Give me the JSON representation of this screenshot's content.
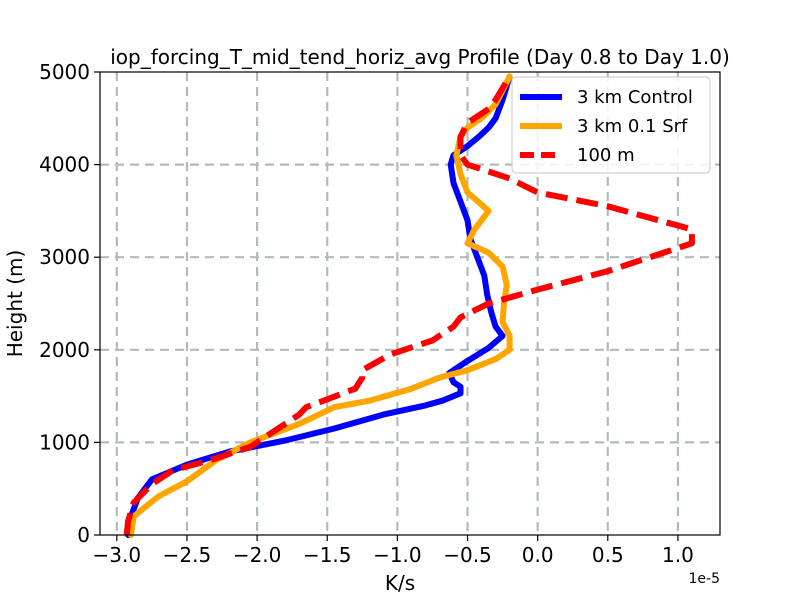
{
  "chart_data": {
    "type": "line",
    "title": "iop_forcing_T_mid_tend_horiz_avg Profile (Day 0.8 to Day 1.0)",
    "xlabel": "K/s",
    "ylabel": "Height (m)",
    "x_offset_label": "1e-5",
    "x_scale": 1e-05,
    "xlim": [
      -3.12,
      1.3
    ],
    "ylim": [
      0,
      5000
    ],
    "xticks": [
      -3.0,
      -2.5,
      -2.0,
      -1.5,
      -1.0,
      -0.5,
      0.0,
      0.5,
      1.0
    ],
    "xtick_labels": [
      "−3.0",
      "−2.5",
      "−2.0",
      "−1.5",
      "−1.0",
      "−0.5",
      "0.0",
      "0.5",
      "1.0"
    ],
    "yticks": [
      0,
      1000,
      2000,
      3000,
      4000,
      5000
    ],
    "ytick_labels": [
      "0",
      "1000",
      "2000",
      "3000",
      "4000",
      "5000"
    ],
    "grid": true,
    "legend_position": "top-right",
    "series": [
      {
        "name": "3 km Control",
        "color": "#0000ff",
        "style": "solid",
        "points": [
          [
            -2.92,
            0
          ],
          [
            -2.9,
            200
          ],
          [
            -2.85,
            400
          ],
          [
            -2.75,
            600
          ],
          [
            -2.5,
            760
          ],
          [
            -2.2,
            900
          ],
          [
            -1.8,
            1020
          ],
          [
            -1.45,
            1150
          ],
          [
            -1.1,
            1300
          ],
          [
            -0.8,
            1400
          ],
          [
            -0.68,
            1450
          ],
          [
            -0.55,
            1530
          ],
          [
            -0.55,
            1600
          ],
          [
            -0.6,
            1650
          ],
          [
            -0.63,
            1750
          ],
          [
            -0.5,
            1880
          ],
          [
            -0.35,
            2020
          ],
          [
            -0.25,
            2150
          ],
          [
            -0.3,
            2250
          ],
          [
            -0.33,
            2400
          ],
          [
            -0.36,
            2600
          ],
          [
            -0.38,
            2800
          ],
          [
            -0.43,
            3000
          ],
          [
            -0.48,
            3200
          ],
          [
            -0.5,
            3400
          ],
          [
            -0.55,
            3600
          ],
          [
            -0.6,
            3800
          ],
          [
            -0.62,
            4000
          ],
          [
            -0.6,
            4100
          ],
          [
            -0.5,
            4200
          ],
          [
            -0.42,
            4300
          ],
          [
            -0.35,
            4400
          ],
          [
            -0.3,
            4500
          ],
          [
            -0.25,
            4700
          ],
          [
            -0.2,
            4950
          ]
        ]
      },
      {
        "name": "3 km 0.1 Srf",
        "color": "#ffa500",
        "style": "solid",
        "points": [
          [
            -2.9,
            0
          ],
          [
            -2.88,
            200
          ],
          [
            -2.8,
            300
          ],
          [
            -2.7,
            420
          ],
          [
            -2.5,
            580
          ],
          [
            -2.3,
            800
          ],
          [
            -2.05,
            1000
          ],
          [
            -1.7,
            1200
          ],
          [
            -1.45,
            1380
          ],
          [
            -1.2,
            1450
          ],
          [
            -0.9,
            1580
          ],
          [
            -0.7,
            1700
          ],
          [
            -0.5,
            1780
          ],
          [
            -0.3,
            1900
          ],
          [
            -0.2,
            2000
          ],
          [
            -0.2,
            2150
          ],
          [
            -0.25,
            2300
          ],
          [
            -0.24,
            2500
          ],
          [
            -0.22,
            2700
          ],
          [
            -0.25,
            2900
          ],
          [
            -0.35,
            3050
          ],
          [
            -0.5,
            3150
          ],
          [
            -0.45,
            3300
          ],
          [
            -0.35,
            3500
          ],
          [
            -0.5,
            3700
          ],
          [
            -0.55,
            3900
          ],
          [
            -0.58,
            4100
          ],
          [
            -0.55,
            4300
          ],
          [
            -0.5,
            4400
          ],
          [
            -0.4,
            4500
          ],
          [
            -0.3,
            4650
          ],
          [
            -0.2,
            4950
          ]
        ]
      },
      {
        "name": "100 m",
        "color": "#ff0000",
        "style": "dashed",
        "points": [
          [
            -2.93,
            0
          ],
          [
            -2.92,
            150
          ],
          [
            -2.88,
            350
          ],
          [
            -2.75,
            550
          ],
          [
            -2.6,
            700
          ],
          [
            -2.35,
            800
          ],
          [
            -2.05,
            950
          ],
          [
            -1.85,
            1150
          ],
          [
            -1.7,
            1300
          ],
          [
            -1.65,
            1380
          ],
          [
            -1.3,
            1580
          ],
          [
            -1.25,
            1700
          ],
          [
            -1.25,
            1780
          ],
          [
            -1.05,
            1950
          ],
          [
            -0.75,
            2100
          ],
          [
            -0.6,
            2250
          ],
          [
            -0.55,
            2350
          ],
          [
            -0.35,
            2500
          ],
          [
            0.0,
            2650
          ],
          [
            0.5,
            2850
          ],
          [
            0.9,
            3050
          ],
          [
            1.1,
            3150
          ],
          [
            1.1,
            3300
          ],
          [
            0.5,
            3550
          ],
          [
            0.0,
            3700
          ],
          [
            -0.2,
            3850
          ],
          [
            -0.5,
            4000
          ],
          [
            -0.55,
            4100
          ],
          [
            -0.55,
            4300
          ],
          [
            -0.5,
            4450
          ],
          [
            -0.35,
            4600
          ],
          [
            -0.3,
            4700
          ],
          [
            -0.2,
            4950
          ]
        ]
      }
    ]
  }
}
